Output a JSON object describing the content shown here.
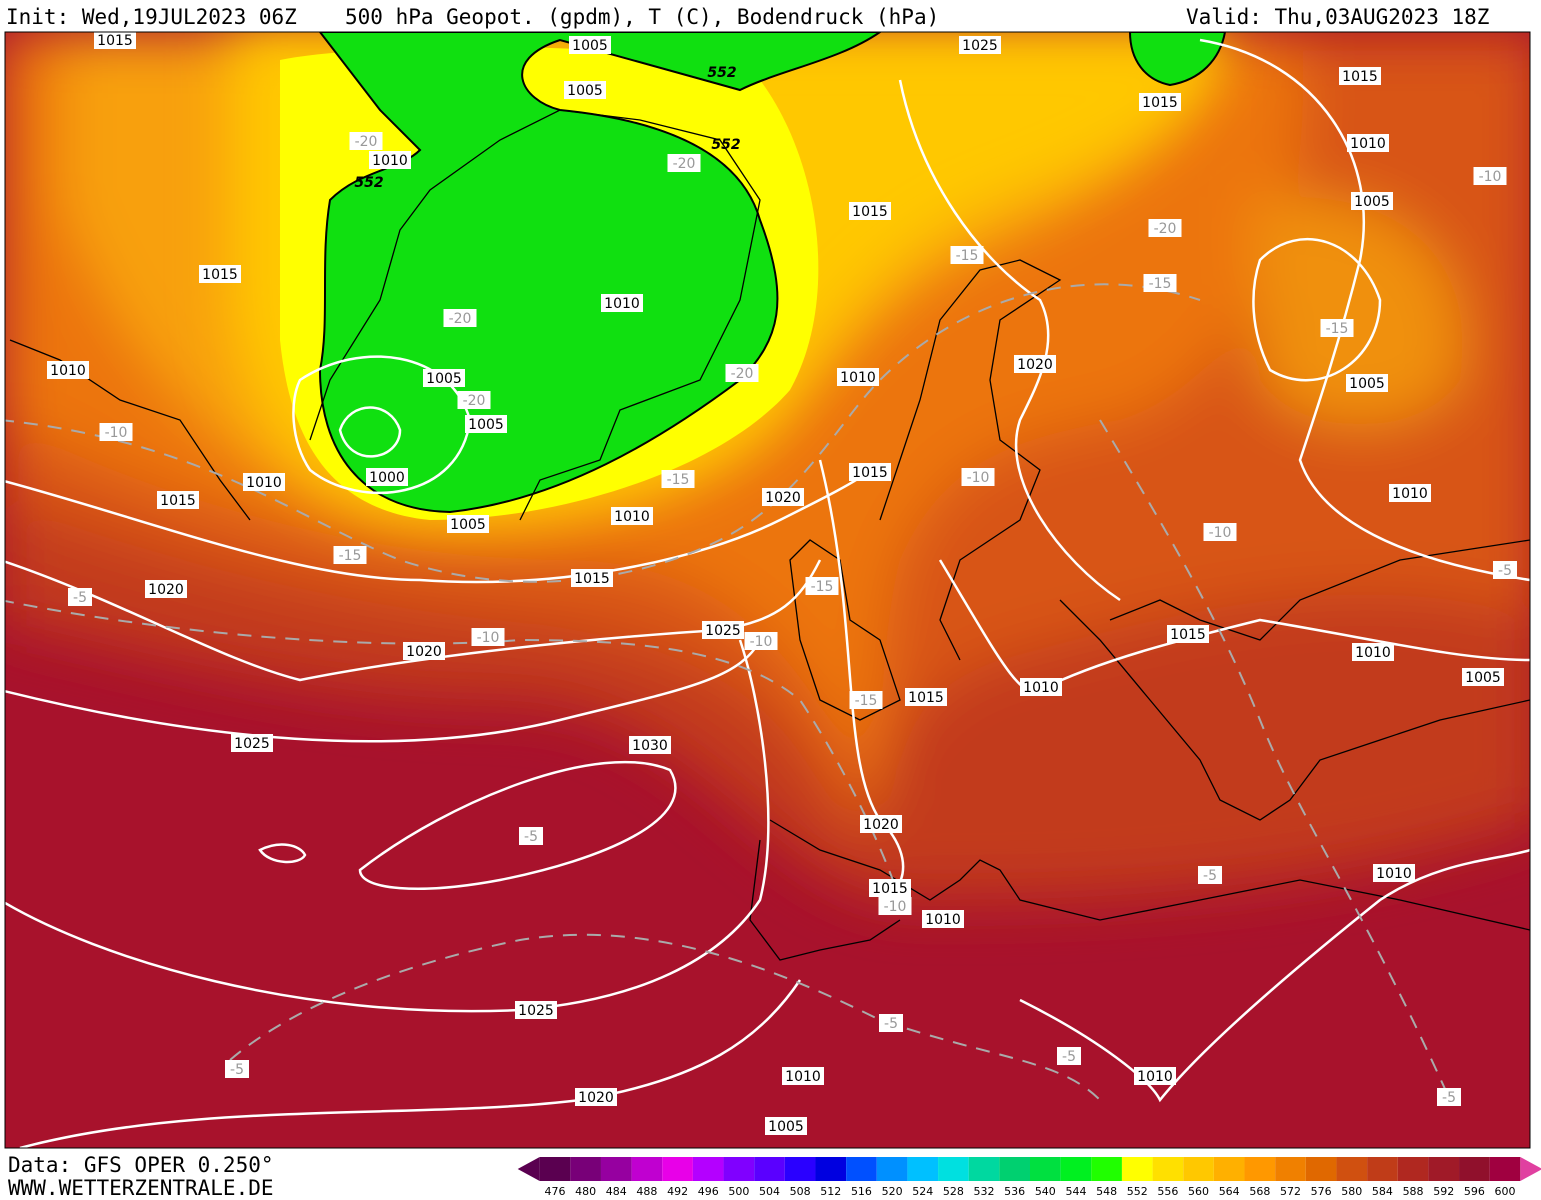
{
  "header": {
    "init": "Init: Wed,19JUL2023 06Z",
    "title": "500 hPa Geopot. (gpdm), T (C), Bodendruck (hPa)",
    "valid": "Valid: Thu,03AUG2023 18Z"
  },
  "footer": {
    "source": "Data: GFS OPER 0.250°",
    "site": "WWW.WETTERZENTRALE.DE"
  },
  "labels": {
    "isobars": [
      "1015",
      "1005",
      "1025",
      "1015",
      "1015",
      "1005",
      "1010",
      "1010",
      "1005",
      "1015",
      "1015",
      "1010",
      "1020",
      "1005",
      "1010",
      "1005",
      "1010",
      "1005",
      "1000",
      "1010",
      "1015",
      "1015",
      "1020",
      "1010",
      "1005",
      "1010",
      "1015",
      "1020",
      "1025",
      "1015",
      "1020",
      "1010",
      "1010",
      "1005",
      "1015",
      "1025",
      "1030",
      "1020",
      "1010",
      "1015",
      "1010",
      "1025",
      "1010",
      "1010",
      "1020",
      "1005"
    ],
    "temperature": [
      "-20",
      "-20",
      "-20",
      "-15",
      "-15",
      "-20",
      "-15",
      "-20",
      "-20",
      "-10",
      "-10",
      "-15",
      "-10",
      "-15",
      "-5",
      "-15",
      "-10",
      "-10",
      "-15",
      "-5",
      "-5",
      "-10",
      "-5",
      "-5",
      "-5",
      "-5",
      "-5",
      "-10"
    ],
    "height": [
      "552",
      "552",
      "552"
    ]
  },
  "legend": {
    "ticks": [
      476,
      480,
      484,
      488,
      492,
      496,
      500,
      504,
      508,
      512,
      516,
      520,
      524,
      528,
      532,
      536,
      540,
      544,
      548,
      552,
      556,
      560,
      564,
      568,
      572,
      576,
      580,
      584,
      588,
      592,
      596,
      600
    ],
    "colors": [
      "#5a0050",
      "#780078",
      "#9600a0",
      "#c000d0",
      "#e800e8",
      "#b400ff",
      "#8000ff",
      "#5a00ff",
      "#2a00ff",
      "#0000e0",
      "#0050ff",
      "#0090ff",
      "#00c0ff",
      "#00e0e0",
      "#00d8a0",
      "#00d070",
      "#00e040",
      "#00f020",
      "#20ff00",
      "#ffff00",
      "#ffe000",
      "#ffc800",
      "#ffb000",
      "#ff9800",
      "#f08000",
      "#e06800",
      "#d05010",
      "#c03c18",
      "#b02820",
      "#a01a28",
      "#90102c",
      "#a00040"
    ]
  }
}
